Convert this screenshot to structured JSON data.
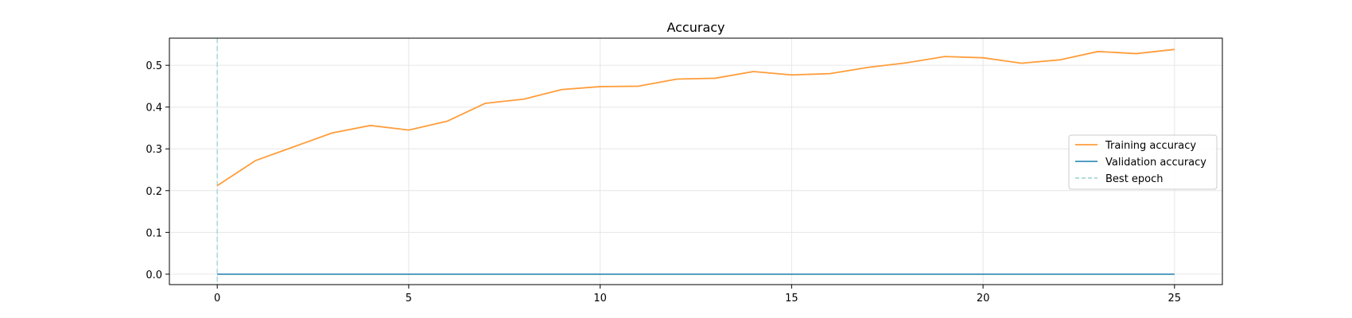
{
  "chart_data": {
    "type": "line",
    "title": "Accuracy",
    "xlabel": "",
    "ylabel": "",
    "xlim": [
      -1.25,
      26.25
    ],
    "ylim": [
      -0.025,
      0.565
    ],
    "x_ticks": [
      0,
      5,
      10,
      15,
      20,
      25
    ],
    "y_ticks": [
      0.0,
      0.1,
      0.2,
      0.3,
      0.4,
      0.5
    ],
    "y_tick_labels": [
      "0.0",
      "0.1",
      "0.2",
      "0.3",
      "0.4",
      "0.5"
    ],
    "grid": true,
    "legend_position": "center-right",
    "x": [
      0,
      1,
      2,
      3,
      4,
      5,
      6,
      7,
      8,
      9,
      10,
      11,
      12,
      13,
      14,
      15,
      16,
      17,
      18,
      19,
      20,
      21,
      22,
      23,
      24,
      25
    ],
    "series": [
      {
        "name": "Training accuracy",
        "color": "#ff9d3a",
        "style": "solid",
        "values": [
          0.212,
          0.272,
          0.305,
          0.338,
          0.356,
          0.345,
          0.366,
          0.409,
          0.419,
          0.442,
          0.449,
          0.45,
          0.467,
          0.469,
          0.485,
          0.477,
          0.48,
          0.495,
          0.506,
          0.521,
          0.518,
          0.505,
          0.513,
          0.533,
          0.528,
          0.538
        ]
      },
      {
        "name": "Validation accuracy",
        "color": "#3a8fb7",
        "style": "solid",
        "values": [
          0,
          0,
          0,
          0,
          0,
          0,
          0,
          0,
          0,
          0,
          0,
          0,
          0,
          0,
          0,
          0,
          0,
          0,
          0,
          0,
          0,
          0,
          0,
          0,
          0,
          0
        ]
      }
    ],
    "best_epoch": {
      "name": "Best epoch",
      "x": 0,
      "color": "#a8d8d8",
      "style": "dashed"
    }
  }
}
